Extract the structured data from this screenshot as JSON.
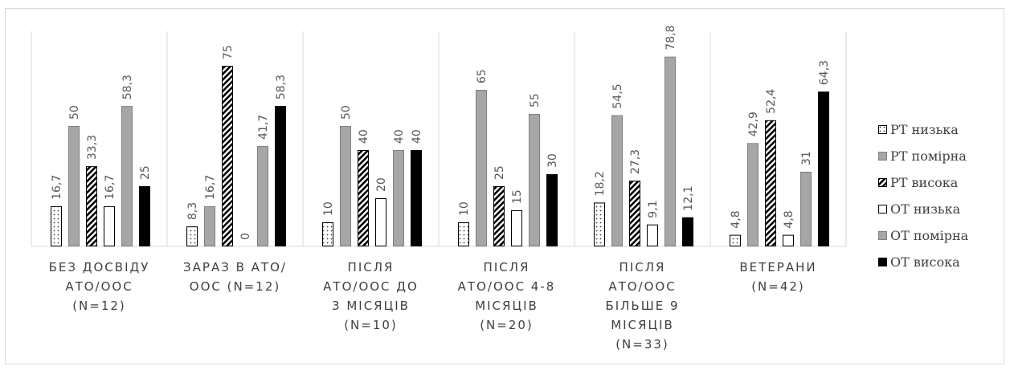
{
  "chart_data": {
    "type": "bar",
    "categories": [
      [
        "БЕЗ ДОСВІДУ",
        "АТО/ООС",
        "(N=12)"
      ],
      [
        "ЗАРАЗ В АТО/",
        "ООС (N=12)"
      ],
      [
        "ПІСЛЯ",
        "АТО/ООС ДО",
        "3 МІСЯЦІВ",
        "(N=10)"
      ],
      [
        "ПІСЛЯ",
        "АТО/ООС 4-8",
        "МІСЯЦІВ",
        "(N=20)"
      ],
      [
        "ПІСЛЯ",
        "АТО/ООС",
        "БІЛЬШЕ 9",
        "МІСЯЦІВ",
        "(N=33)"
      ],
      [
        "ВЕТЕРАНИ",
        "(N=42)"
      ]
    ],
    "series": [
      {
        "name": "РТ низька",
        "pattern": "dots",
        "values": [
          16.7,
          8.3,
          10,
          10,
          18.2,
          4.8
        ],
        "labels": [
          "16,7",
          "8,3",
          "10",
          "10",
          "18,2",
          "4,8"
        ]
      },
      {
        "name": "РТ помірна",
        "pattern": "grey",
        "values": [
          50,
          16.7,
          50,
          65,
          54.5,
          42.9
        ],
        "labels": [
          "50",
          "16,7",
          "50",
          "65",
          "54,5",
          "42,9"
        ]
      },
      {
        "name": "РТ висока",
        "pattern": "diagonal",
        "values": [
          33.3,
          75,
          40,
          25,
          27.3,
          52.4
        ],
        "labels": [
          "33,3",
          "75",
          "40",
          "25",
          "27,3",
          "52,4"
        ]
      },
      {
        "name": "ОТ низька",
        "pattern": "white",
        "values": [
          16.7,
          0,
          20,
          15,
          9.1,
          4.8
        ],
        "labels": [
          "16,7",
          "0",
          "20",
          "15",
          "9,1",
          "4,8"
        ]
      },
      {
        "name": "ОТ помірна",
        "pattern": "grey",
        "values": [
          58.3,
          41.7,
          40,
          55,
          78.8,
          31
        ],
        "labels": [
          "58,3",
          "41,7",
          "40",
          "55",
          "78,8",
          "31"
        ]
      },
      {
        "name": "ОТ висока",
        "pattern": "black",
        "values": [
          25,
          58.3,
          40,
          30,
          12.1,
          64.3
        ],
        "labels": [
          "25",
          "58,3",
          "40",
          "30",
          "12,1",
          "64,3"
        ]
      }
    ],
    "ylim": [
      0,
      85
    ],
    "grid": false,
    "legend": "right",
    "colors": {
      "grey_fill": "#a6a6a6",
      "grey_border": "#7f7f7f",
      "black": "#000000",
      "dot_grey": "#595959",
      "separator": "#d9d9d9",
      "label": "#595959"
    }
  }
}
